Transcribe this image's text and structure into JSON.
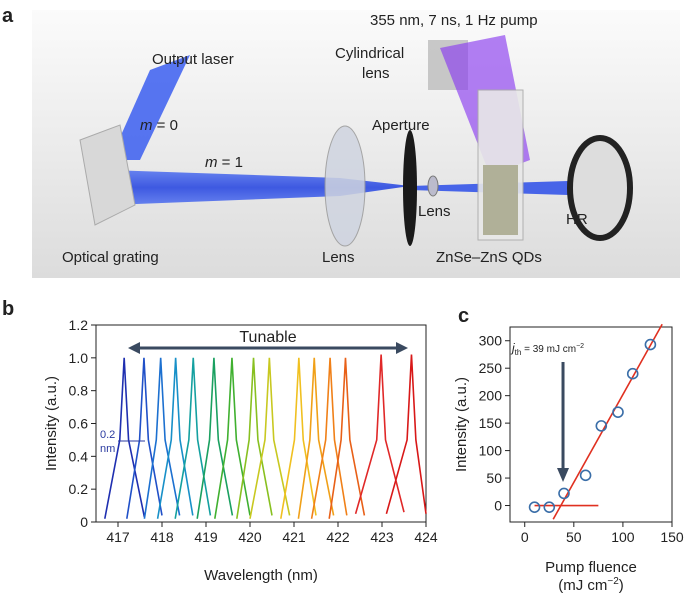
{
  "panel_a": {
    "letter": "a",
    "labels": {
      "pump": "355 nm, 7 ns, 1 Hz pump",
      "cyl1": "Cylindrical",
      "cyl2": "lens",
      "output": "Output laser",
      "m0_var": "m",
      "m0_text": " = 0",
      "m1_var": "m",
      "m1_text": " = 1",
      "aperture": "Aperture",
      "lens_small": "Lens",
      "lens": "Lens",
      "hr": "HR",
      "grating": "Optical grating",
      "qds": "ZnSe–ZnS QDs"
    }
  },
  "chart_data": [
    {
      "type": "line",
      "letter": "b",
      "x_label": "Wavelength (nm)",
      "y_label": "Intensity (a.u.)",
      "xlim": [
        416.5,
        424
      ],
      "xticks": [
        417,
        418,
        419,
        420,
        421,
        422,
        423,
        424
      ],
      "ylim": [
        0,
        1.2
      ],
      "yticks": [
        0,
        {
          "value": 0.2,
          "label": "0.2"
        },
        {
          "value": 0.4,
          "label": "0.4"
        },
        {
          "value": 0.6,
          "label": "0.6"
        },
        {
          "value": 0.8,
          "label": "0.8"
        },
        {
          "value": 1.0,
          "label": "1.0"
        },
        {
          "value": 1.2,
          "label": "1.2"
        }
      ],
      "annotations": {
        "tunable": "Tunable",
        "fwhm1": "0.2",
        "fwhm2": "nm"
      },
      "series": [
        {
          "color": "#1f2fb0",
          "x": [
            416.7,
            417.04,
            417.14,
            417.24,
            417.6
          ],
          "values": [
            0.02,
            0.5,
            1.0,
            0.5,
            0.03
          ]
        },
        {
          "color": "#2050c8",
          "x": [
            417.2,
            417.49,
            417.59,
            417.69,
            418.0
          ],
          "values": [
            0.02,
            0.5,
            1.0,
            0.5,
            0.04
          ]
        },
        {
          "color": "#1c70d0",
          "x": [
            417.6,
            417.87,
            417.97,
            418.07,
            418.4
          ],
          "values": [
            0.02,
            0.5,
            1.0,
            0.5,
            0.04
          ]
        },
        {
          "color": "#1890c8",
          "x": [
            417.9,
            418.21,
            418.31,
            418.41,
            418.7
          ],
          "values": [
            0.02,
            0.5,
            1.0,
            0.5,
            0.04
          ]
        },
        {
          "color": "#14a0a0",
          "x": [
            418.3,
            418.61,
            418.71,
            418.81,
            419.1
          ],
          "values": [
            0.02,
            0.5,
            1.0,
            0.5,
            0.04
          ]
        },
        {
          "color": "#1aa060",
          "x": [
            418.8,
            419.08,
            419.18,
            419.28,
            419.6
          ],
          "values": [
            0.02,
            0.5,
            1.0,
            0.5,
            0.04
          ]
        },
        {
          "color": "#40b030",
          "x": [
            419.2,
            419.49,
            419.59,
            419.69,
            420.0
          ],
          "values": [
            0.02,
            0.5,
            1.0,
            0.5,
            0.04
          ]
        },
        {
          "color": "#88c020",
          "x": [
            419.7,
            419.98,
            420.08,
            420.18,
            420.5
          ],
          "values": [
            0.02,
            0.5,
            1.0,
            0.5,
            0.04
          ]
        },
        {
          "color": "#c8c820",
          "x": [
            420.0,
            420.34,
            420.44,
            420.54,
            420.9
          ],
          "values": [
            0.02,
            0.5,
            1.0,
            0.5,
            0.04
          ]
        },
        {
          "color": "#f0c020",
          "x": [
            420.7,
            421.01,
            421.11,
            421.21,
            421.5
          ],
          "values": [
            0.02,
            0.5,
            1.0,
            0.5,
            0.04
          ]
        },
        {
          "color": "#f0a018",
          "x": [
            421.1,
            421.36,
            421.46,
            421.56,
            421.9
          ],
          "values": [
            0.02,
            0.5,
            1.0,
            0.5,
            0.04
          ]
        },
        {
          "color": "#f08018",
          "x": [
            421.4,
            421.72,
            421.82,
            421.92,
            422.2
          ],
          "values": [
            0.02,
            0.5,
            1.0,
            0.5,
            0.04
          ]
        },
        {
          "color": "#e86018",
          "x": [
            421.8,
            422.07,
            422.17,
            422.27,
            422.6
          ],
          "values": [
            0.02,
            0.5,
            1.0,
            0.5,
            0.04
          ]
        },
        {
          "color": "#e02828",
          "x": [
            422.4,
            422.88,
            422.98,
            423.08,
            423.5
          ],
          "values": [
            0.05,
            0.5,
            1.02,
            0.5,
            0.06
          ]
        },
        {
          "color": "#d81818",
          "x": [
            423.1,
            423.57,
            423.67,
            423.77,
            424.0
          ],
          "values": [
            0.05,
            0.5,
            1.02,
            0.5,
            0.05
          ]
        }
      ]
    },
    {
      "type": "scatter",
      "letter": "c",
      "x_label": "Pump fluence",
      "x_unit_a": "(mJ cm",
      "x_unit_sup": "−2",
      "x_unit_b": ")",
      "y_label": "Intensity (a.u.)",
      "xlim": [
        -15,
        150
      ],
      "xticks": [
        0,
        50,
        100,
        150
      ],
      "ylim": [
        -30,
        325
      ],
      "yticks": [
        0,
        50,
        100,
        150,
        200,
        250,
        300
      ],
      "annotation": {
        "j": "j",
        "sub": "th",
        "text": " = 39 mJ cm",
        "sup": "−2",
        "x": 39
      },
      "points": {
        "color": "#3a6ea8",
        "x": [
          10,
          25,
          40,
          62,
          78,
          95,
          110,
          128
        ],
        "values": [
          -3,
          -3,
          22,
          55,
          145,
          170,
          240,
          293
        ]
      },
      "fit": {
        "color": "#e03020",
        "x": [
          29,
          140
        ],
        "values": [
          -25,
          330
        ]
      },
      "baseline": {
        "color": "#e03020",
        "x": [
          10,
          75
        ],
        "values": [
          0,
          0
        ]
      }
    }
  ]
}
